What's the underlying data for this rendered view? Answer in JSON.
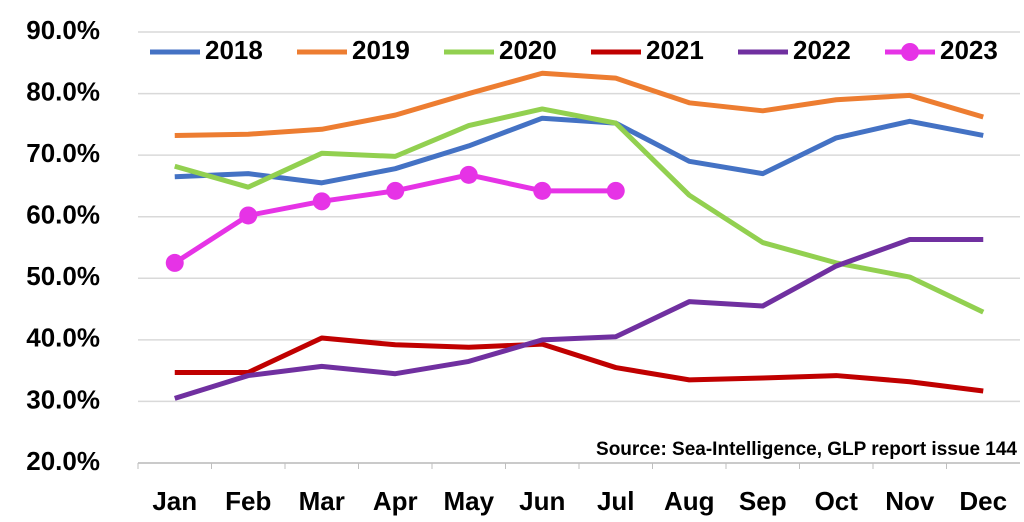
{
  "chart_data": {
    "type": "line",
    "annotation": "Source: Sea-Intelligence, GLP report issue 144",
    "categories": [
      "Jan",
      "Feb",
      "Mar",
      "Apr",
      "May",
      "Jun",
      "Jul",
      "Aug",
      "Sep",
      "Oct",
      "Nov",
      "Dec"
    ],
    "series": [
      {
        "name": "2018",
        "color": "#4472c4",
        "values": [
          66.5,
          67.0,
          65.5,
          67.8,
          71.5,
          76.0,
          75.2,
          69.0,
          67.0,
          72.8,
          75.5,
          73.2
        ]
      },
      {
        "name": "2019",
        "color": "#ed7d31",
        "values": [
          73.2,
          73.4,
          74.2,
          76.5,
          80.0,
          83.3,
          82.5,
          78.5,
          77.2,
          79.0,
          79.7,
          76.2
        ]
      },
      {
        "name": "2020",
        "color": "#92d050",
        "values": [
          68.2,
          64.8,
          70.3,
          69.8,
          74.8,
          77.5,
          75.2,
          63.5,
          55.8,
          52.5,
          50.2,
          44.5
        ]
      },
      {
        "name": "2021",
        "color": "#c00000",
        "values": [
          34.7,
          34.7,
          40.3,
          39.2,
          38.8,
          39.3,
          35.5,
          33.5,
          33.8,
          34.2,
          33.2,
          31.7
        ]
      },
      {
        "name": "2022",
        "color": "#7030a0",
        "values": [
          30.5,
          34.2,
          35.7,
          34.5,
          36.5,
          40.0,
          40.5,
          46.2,
          45.5,
          52.0,
          56.3,
          56.3
        ]
      },
      {
        "name": "2023",
        "color": "#e633e6",
        "marker": true,
        "values": [
          52.5,
          60.2,
          62.5,
          64.2,
          66.8,
          64.2,
          64.2,
          null,
          null,
          null,
          null,
          null
        ]
      }
    ],
    "ylim": [
      20,
      90
    ],
    "yticks": [
      {
        "value": 20,
        "label": "20.0%"
      },
      {
        "value": 30,
        "label": "30.0%"
      },
      {
        "value": 40,
        "label": "40.0%"
      },
      {
        "value": 50,
        "label": "50.0%"
      },
      {
        "value": 60,
        "label": "60.0%"
      },
      {
        "value": 70,
        "label": "70.0%"
      },
      {
        "value": 80,
        "label": "80.0%"
      },
      {
        "value": 90,
        "label": "90.0%"
      }
    ],
    "grid": true,
    "legend": "top"
  }
}
